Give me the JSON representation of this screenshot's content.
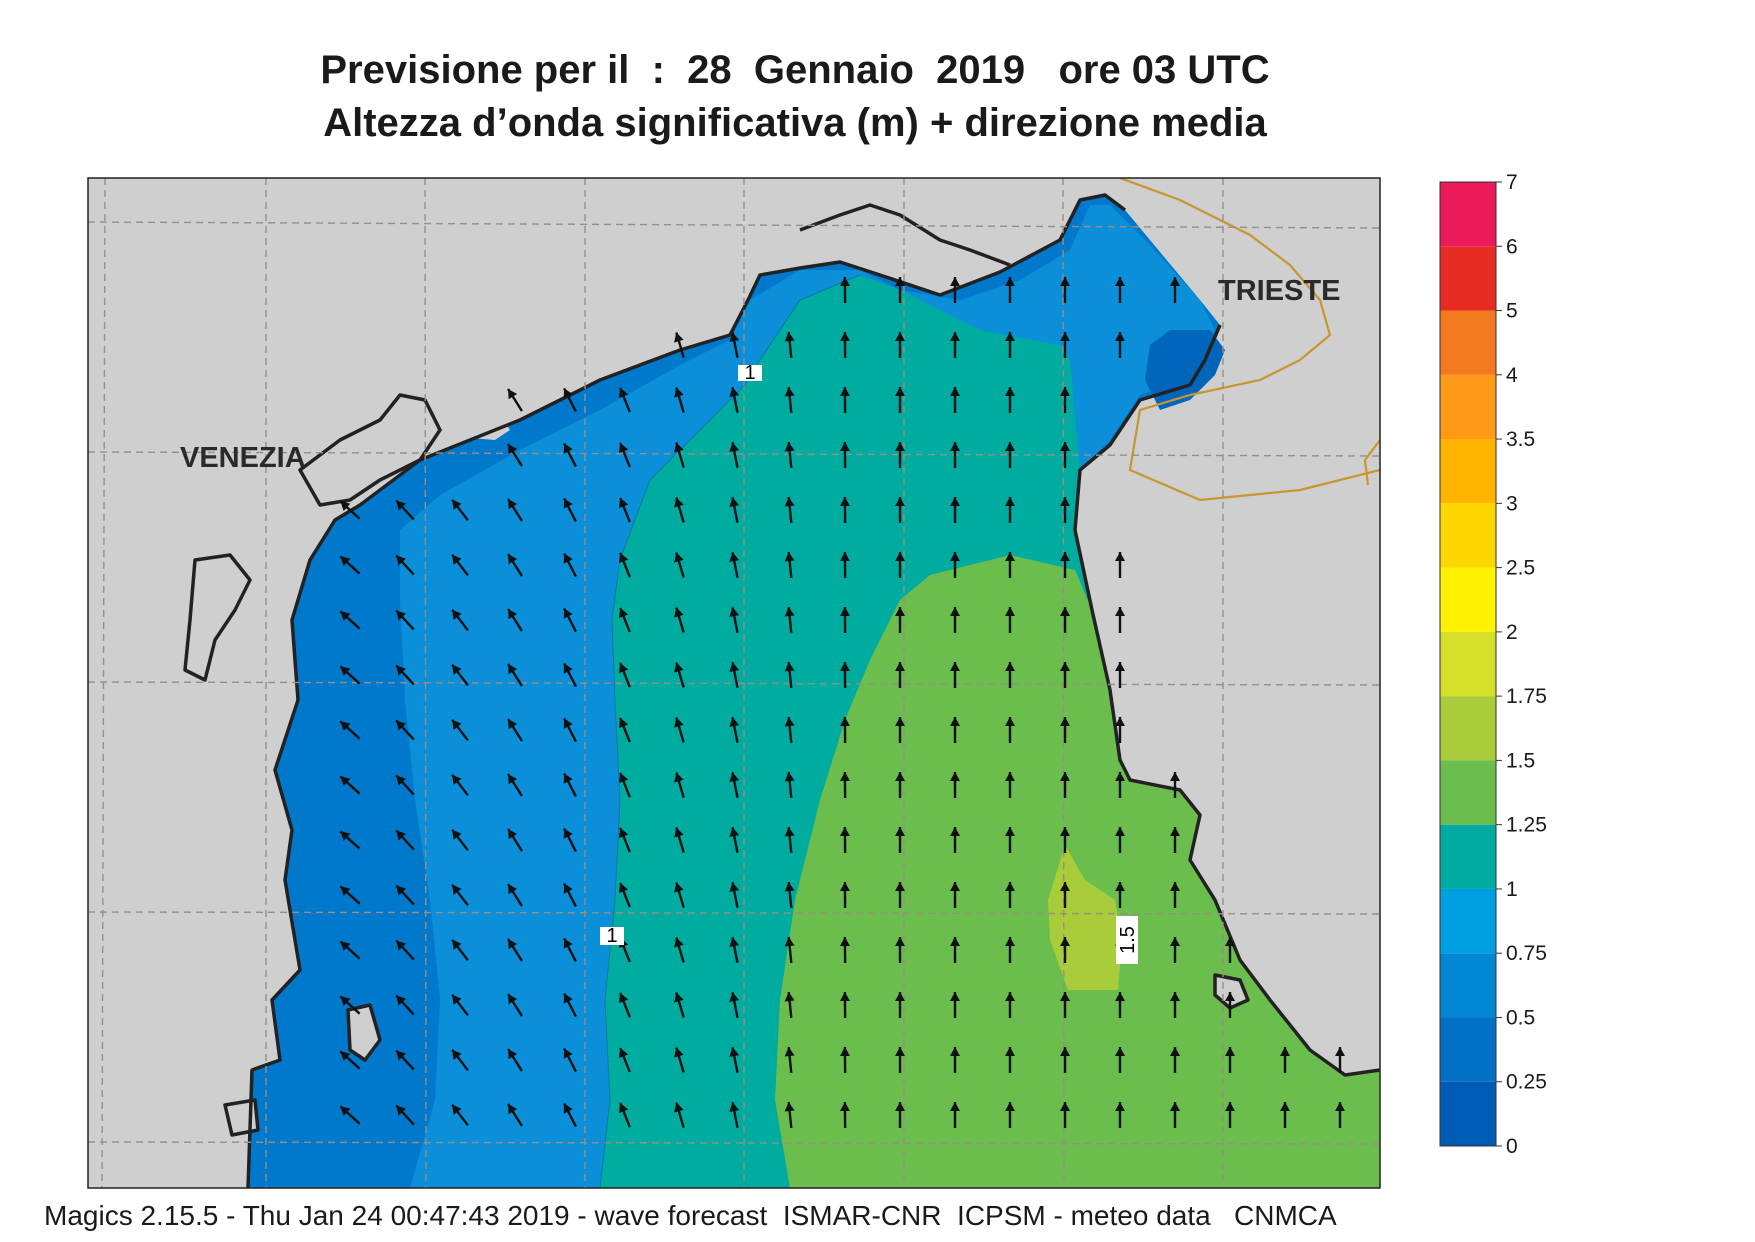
{
  "title": {
    "line1": "Previsione per il  :  28  Gennaio  2019   ore 03 UTC",
    "line2": "Altezza d’onda significativa (m) + direzione media"
  },
  "map": {
    "cities": [
      {
        "name": "VENEZIA"
      },
      {
        "name": "TRIESTE"
      }
    ],
    "contour_labels": [
      "1",
      "1",
      "1.5"
    ],
    "colors": {
      "land": "#cfcfcf",
      "sea_0_25": "#0066bb",
      "sea_0_5": "#0078cc",
      "sea_0_75": "#0a8fd8",
      "sea_1": "#00a3df",
      "sea_1_25": "#00aca0",
      "sea_1_5": "#6bbd4e",
      "sea_1_75": "#a8cc3a",
      "coast": "#222222",
      "border": "#c9952e",
      "arrow": "#111111"
    },
    "arrow_direction": "north to north-west"
  },
  "colorbar": {
    "labels": [
      "0",
      "0.25",
      "0.5",
      "0.75",
      "1",
      "1.25",
      "1.5",
      "1.75",
      "2",
      "2.5",
      "3",
      "3.5",
      "4",
      "5",
      "6",
      "7"
    ],
    "colors": [
      "#005bb5",
      "#0070c4",
      "#0086d2",
      "#009fe0",
      "#00aaa0",
      "#6bbd4e",
      "#a8cc3a",
      "#d6df2a",
      "#fff200",
      "#ffd700",
      "#ffb400",
      "#ff9a16",
      "#f47a20",
      "#e52b22",
      "#ec1a5a"
    ]
  },
  "footer": "Magics 2.15.5 - Thu Jan 24 00:47:43 2019 - wave forecast  ISMAR-CNR  ICPSM - meteo data   CNMCA"
}
